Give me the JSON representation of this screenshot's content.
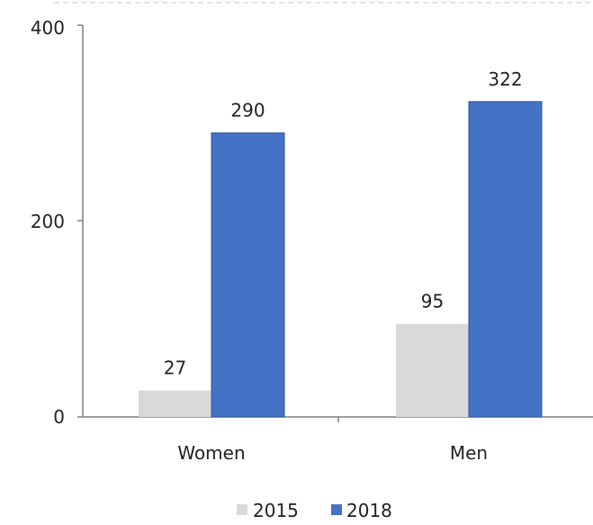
{
  "chart_data": {
    "type": "bar",
    "categories": [
      "Women",
      "Men"
    ],
    "series": [
      {
        "name": "2015",
        "values": [
          27,
          95
        ],
        "color": "#d9d9d9"
      },
      {
        "name": "2018",
        "values": [
          290,
          322
        ],
        "color": "#4472c4"
      }
    ],
    "ylim": [
      0,
      400
    ],
    "yticks": [
      "0",
      "200",
      "400"
    ],
    "data_labels": [
      [
        "27",
        "95"
      ],
      [
        "290",
        "322"
      ]
    ],
    "grid": false,
    "legend_position": "bottom"
  }
}
